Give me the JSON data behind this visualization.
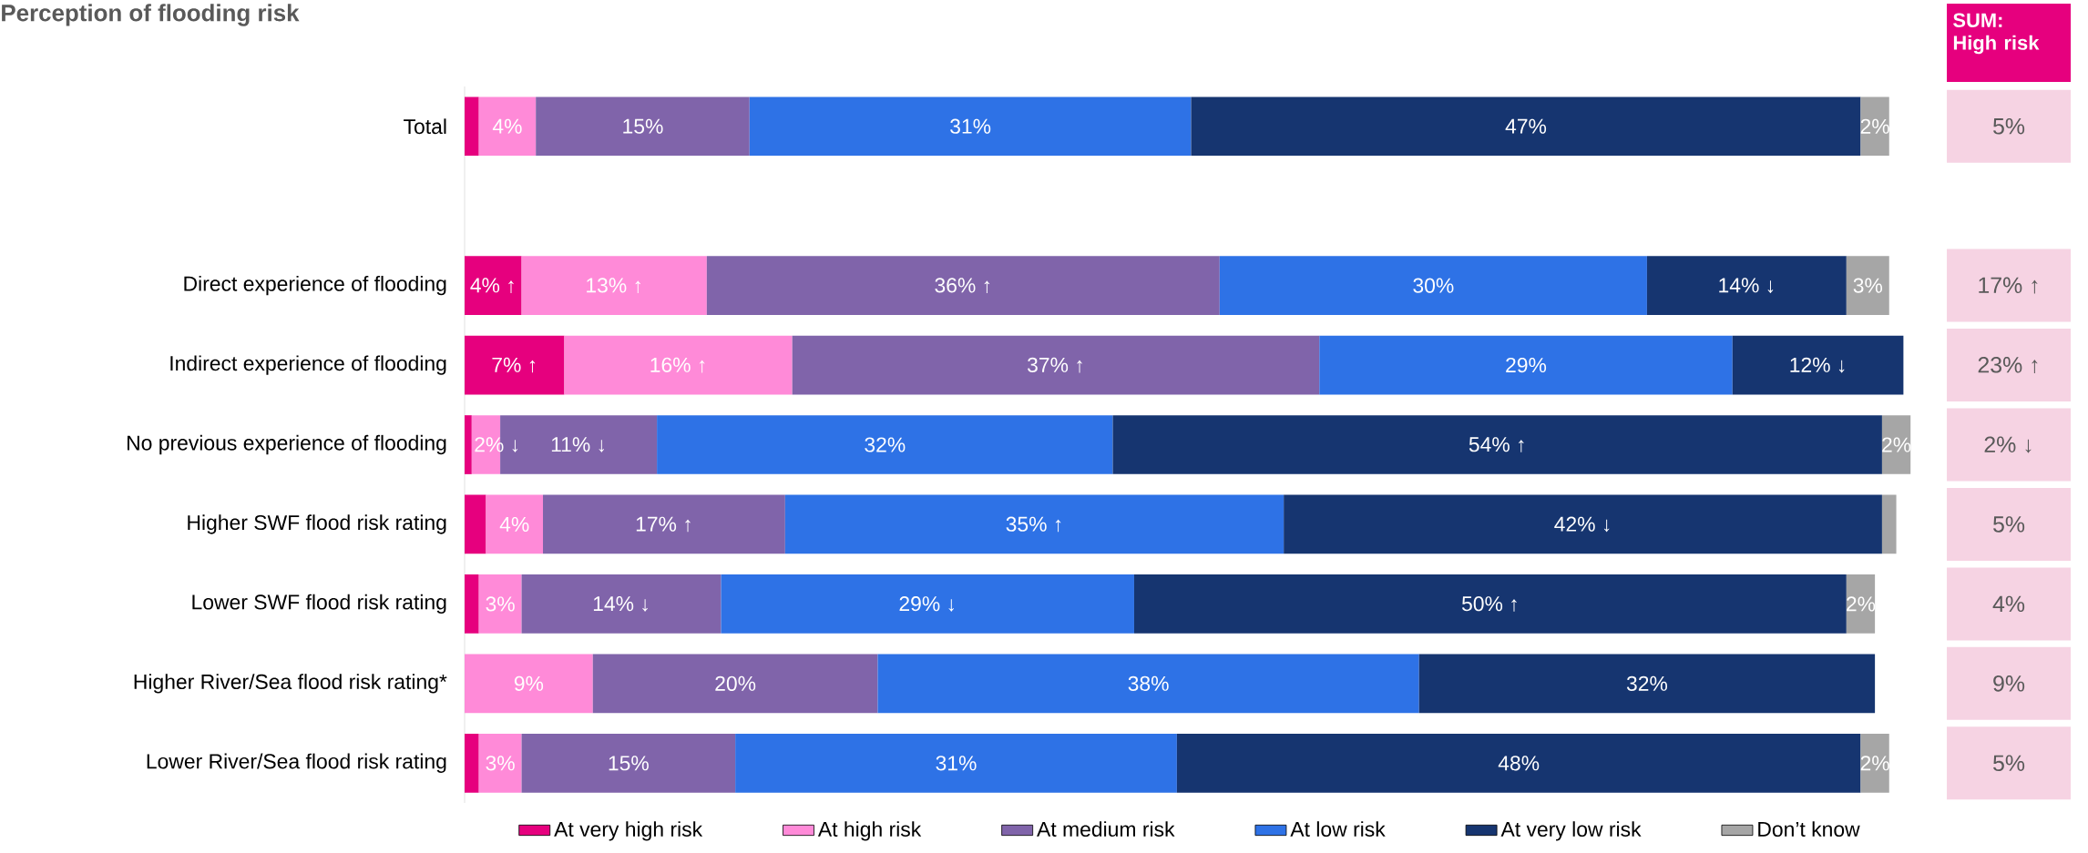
{
  "chart_data": [
    {
      "type": "bar",
      "orientation": "horizontal",
      "stacked": true,
      "title": "Perception of flooding risk",
      "categories": [
        "Total",
        null,
        "Direct experience of flooding",
        "Indirect experience of flooding",
        "No previous experience of flooding",
        "Higher SWF flood risk rating",
        "Lower SWF flood risk rating",
        "Higher River/Sea flood risk rating*",
        "Lower River/Sea flood risk rating"
      ],
      "xlim": [
        0,
        102
      ],
      "tick_labels": "y",
      "legend": "bottom",
      "series": [
        {
          "name": "At very high risk",
          "color": "#e6007e",
          "values": [
            1,
            null,
            4,
            7,
            0.5,
            1.5,
            1,
            null,
            1
          ],
          "value_labels": [
            null,
            null,
            "4% ↑",
            "7% ↑",
            null,
            null,
            null,
            null,
            null
          ]
        },
        {
          "name": "At high risk",
          "color": "#ff8ad8",
          "values": [
            4,
            null,
            13,
            16,
            2,
            4,
            3,
            9,
            3
          ],
          "value_labels": [
            "4%",
            null,
            "13% ↑",
            "16% ↑",
            "2% ↓",
            "4%",
            "3%",
            "9%",
            "3%"
          ]
        },
        {
          "name": "At medium risk",
          "color": "#8064aa",
          "values": [
            15,
            null,
            36,
            37,
            11,
            17,
            14,
            20,
            15
          ],
          "value_labels": [
            "15%",
            null,
            "36% ↑",
            "37% ↑",
            "11% ↓",
            "17% ↑",
            "14% ↓",
            "20%",
            "15%"
          ]
        },
        {
          "name": "At low risk",
          "color": "#2e72e6",
          "values": [
            31,
            null,
            30,
            29,
            32,
            35,
            29,
            38,
            31
          ],
          "value_labels": [
            "31%",
            null,
            "30%",
            "29%",
            "32%",
            "35% ↑",
            "29% ↓",
            "38%",
            "31%"
          ]
        },
        {
          "name": "At very low risk",
          "color": "#163570",
          "values": [
            47,
            null,
            14,
            12,
            54,
            42,
            50,
            32,
            48
          ],
          "value_labels": [
            "47%",
            null,
            "14% ↓",
            "12% ↓",
            "54% ↑",
            "42% ↓",
            "50% ↑",
            "32%",
            "48%"
          ]
        },
        {
          "name": "Don’t know",
          "color": "#a6a6a6",
          "values": [
            2,
            null,
            3,
            null,
            2,
            1,
            2,
            null,
            2
          ],
          "value_labels": [
            "2%",
            null,
            "3%",
            null,
            "2%",
            null,
            "2%",
            null,
            "2%"
          ]
        }
      ]
    },
    {
      "type": "other",
      "title": "SUM: High risk",
      "annotations": [
        "5%",
        "17% ↑",
        "23% ↑",
        "2% ↓",
        "5%",
        "4%",
        "9%",
        "5%"
      ]
    }
  ]
}
